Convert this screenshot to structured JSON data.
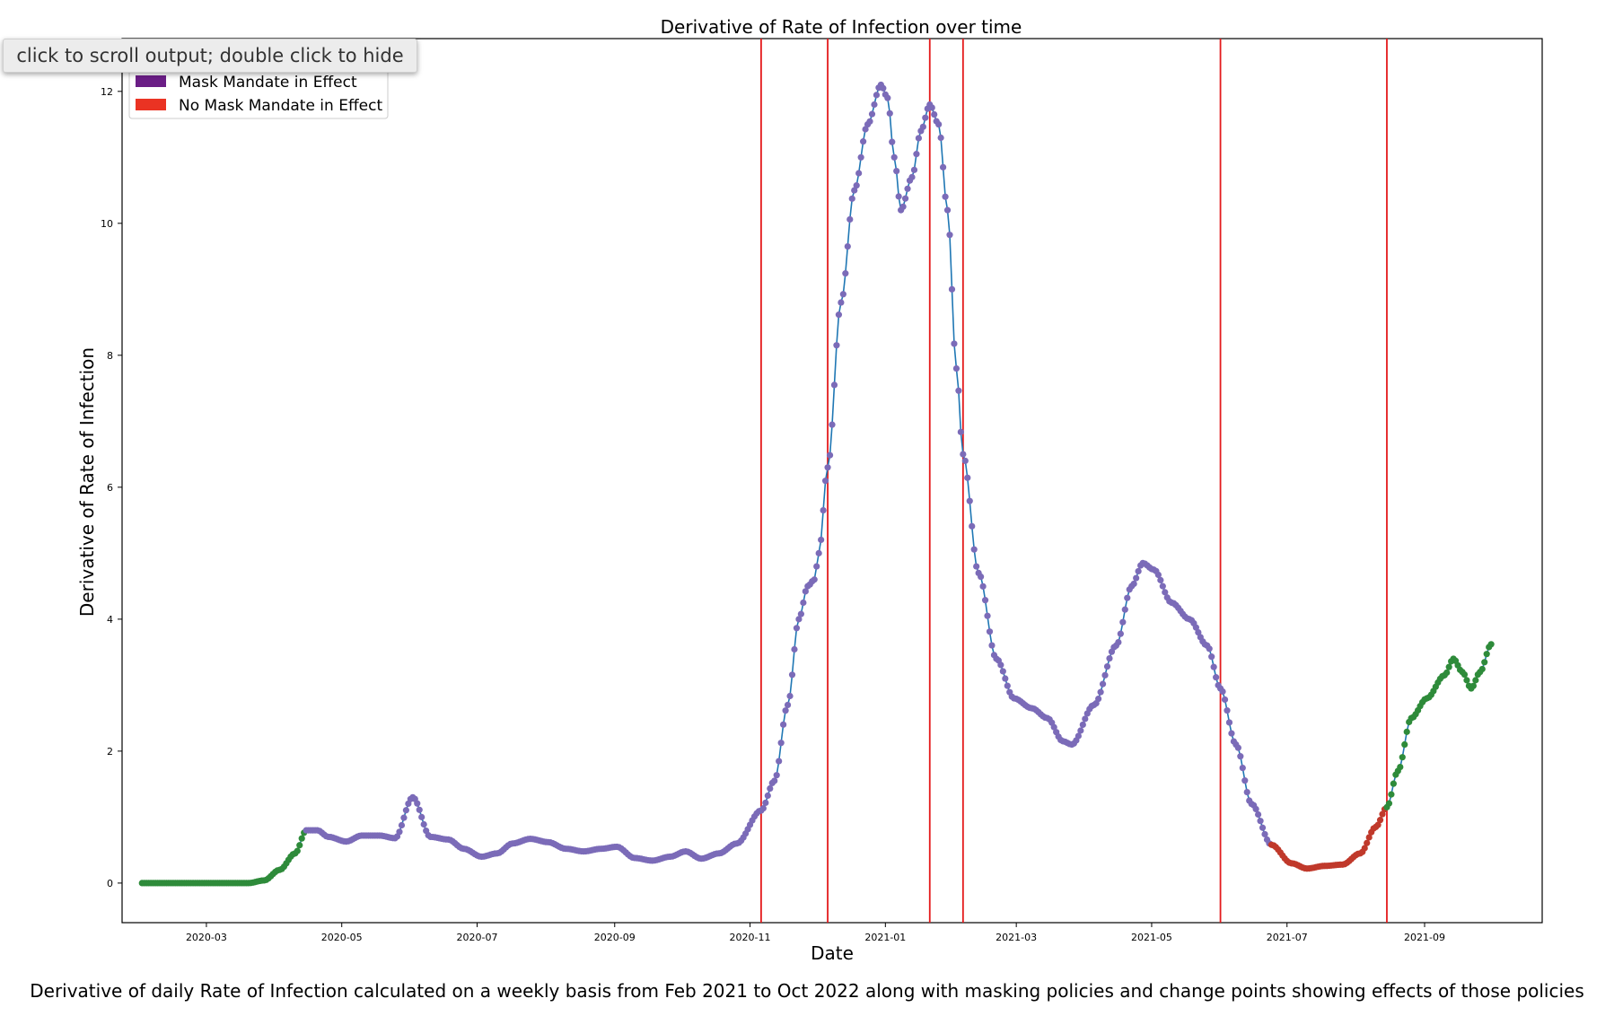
{
  "output_toggle": {
    "label": "click to scroll output; double click to hide"
  },
  "caption": "Derivative of daily Rate of Infection calculated on a weekly basis from Feb 2021 to Oct 2022 along with masking policies and change points showing effects of those policies",
  "colors": {
    "line": "#1f77b4",
    "mask": "#6b1e86",
    "no_mask": "#ea3323",
    "no_policy": "#2e8b3a",
    "change_point": "#e41a1c",
    "mask_marker": "#7b6bb8",
    "no_mask_marker": "#c0392b"
  },
  "chart_data": {
    "type": "line",
    "title": "Derivative of Rate of Infection over time",
    "xlabel": "Date",
    "ylabel": "Derivative of Rate of Infection",
    "x_range": [
      "2020-01-23",
      "2021-10-24"
    ],
    "ylim": [
      -0.6,
      12.8
    ],
    "x_ticks": [
      "2020-03",
      "2020-05",
      "2020-07",
      "2020-09",
      "2020-11",
      "2021-01",
      "2021-03",
      "2021-05",
      "2021-07",
      "2021-09"
    ],
    "y_ticks": [
      0,
      2,
      4,
      6,
      8,
      10,
      12
    ],
    "grid": false,
    "legend": {
      "placement": "top-left",
      "entries": [
        {
          "label": "Mask Mandate in Effect",
          "color": "#6b1e86"
        },
        {
          "label": "No Mask Mandate in Effect",
          "color": "#ea3323"
        }
      ]
    },
    "change_points": [
      "2020-11-06",
      "2020-12-06",
      "2021-01-21",
      "2021-02-05",
      "2021-06-01",
      "2021-08-15"
    ],
    "segments": [
      {
        "policy": "none",
        "from": "2020-02-01",
        "to": "2020-04-15"
      },
      {
        "policy": "mask",
        "from": "2020-04-15",
        "to": "2021-06-24"
      },
      {
        "policy": "no_mask",
        "from": "2021-06-24",
        "to": "2021-08-15"
      },
      {
        "policy": "none",
        "from": "2021-08-15",
        "to": "2021-10-01"
      }
    ],
    "series": [
      {
        "points": [
          [
            "2020-02-01",
            0.0
          ],
          [
            "2020-03-20",
            0.0
          ],
          [
            "2020-03-27",
            0.04
          ],
          [
            "2020-04-03",
            0.2
          ],
          [
            "2020-04-10",
            0.45
          ],
          [
            "2020-04-15",
            0.8
          ],
          [
            "2020-04-20",
            0.8
          ],
          [
            "2020-04-25",
            0.7
          ],
          [
            "2020-05-03",
            0.63
          ],
          [
            "2020-05-10",
            0.72
          ],
          [
            "2020-05-18",
            0.72
          ],
          [
            "2020-05-25",
            0.68
          ],
          [
            "2020-06-02",
            1.3
          ],
          [
            "2020-06-10",
            0.7
          ],
          [
            "2020-06-18",
            0.66
          ],
          [
            "2020-06-25",
            0.52
          ],
          [
            "2020-07-03",
            0.4
          ],
          [
            "2020-07-10",
            0.45
          ],
          [
            "2020-07-17",
            0.6
          ],
          [
            "2020-07-25",
            0.67
          ],
          [
            "2020-08-02",
            0.62
          ],
          [
            "2020-08-10",
            0.52
          ],
          [
            "2020-08-18",
            0.48
          ],
          [
            "2020-08-26",
            0.52
          ],
          [
            "2020-09-02",
            0.55
          ],
          [
            "2020-09-10",
            0.38
          ],
          [
            "2020-09-18",
            0.34
          ],
          [
            "2020-09-26",
            0.4
          ],
          [
            "2020-10-03",
            0.48
          ],
          [
            "2020-10-10",
            0.37
          ],
          [
            "2020-10-18",
            0.45
          ],
          [
            "2020-10-26",
            0.6
          ],
          [
            "2020-11-06",
            1.1
          ],
          [
            "2020-11-12",
            1.55
          ],
          [
            "2020-11-18",
            2.7
          ],
          [
            "2020-11-23",
            4.0
          ],
          [
            "2020-11-27",
            4.5
          ],
          [
            "2020-11-30",
            4.6
          ],
          [
            "2020-12-02",
            5.0
          ],
          [
            "2020-12-06",
            6.3
          ],
          [
            "2020-12-12",
            8.8
          ],
          [
            "2020-12-18",
            10.5
          ],
          [
            "2020-12-24",
            11.5
          ],
          [
            "2020-12-30",
            12.1
          ],
          [
            "2021-01-02",
            11.9
          ],
          [
            "2021-01-05",
            11.0
          ],
          [
            "2021-01-08",
            10.2
          ],
          [
            "2021-01-13",
            10.7
          ],
          [
            "2021-01-17",
            11.4
          ],
          [
            "2021-01-21",
            11.8
          ],
          [
            "2021-01-25",
            11.5
          ],
          [
            "2021-01-29",
            10.2
          ],
          [
            "2021-02-02",
            7.8
          ],
          [
            "2021-02-05",
            6.5
          ],
          [
            "2021-02-12",
            4.7
          ],
          [
            "2021-02-20",
            3.4
          ],
          [
            "2021-02-28",
            2.8
          ],
          [
            "2021-03-08",
            2.65
          ],
          [
            "2021-03-15",
            2.5
          ],
          [
            "2021-03-22",
            2.15
          ],
          [
            "2021-03-26",
            2.1
          ],
          [
            "2021-04-05",
            2.7
          ],
          [
            "2021-04-15",
            3.6
          ],
          [
            "2021-04-22",
            4.5
          ],
          [
            "2021-04-27",
            4.85
          ],
          [
            "2021-05-02",
            4.75
          ],
          [
            "2021-05-10",
            4.25
          ],
          [
            "2021-05-18",
            4.0
          ],
          [
            "2021-05-26",
            3.6
          ],
          [
            "2021-06-01",
            2.95
          ],
          [
            "2021-06-08",
            2.1
          ],
          [
            "2021-06-15",
            1.2
          ],
          [
            "2021-06-24",
            0.58
          ],
          [
            "2021-07-03",
            0.3
          ],
          [
            "2021-07-10",
            0.22
          ],
          [
            "2021-07-18",
            0.26
          ],
          [
            "2021-07-26",
            0.28
          ],
          [
            "2021-08-03",
            0.45
          ],
          [
            "2021-08-10",
            0.85
          ],
          [
            "2021-08-15",
            1.15
          ],
          [
            "2021-08-20",
            1.7
          ],
          [
            "2021-08-26",
            2.5
          ],
          [
            "2021-09-02",
            2.8
          ],
          [
            "2021-09-10",
            3.15
          ],
          [
            "2021-09-14",
            3.4
          ],
          [
            "2021-09-18",
            3.2
          ],
          [
            "2021-09-22",
            2.95
          ],
          [
            "2021-09-26",
            3.2
          ],
          [
            "2021-10-01",
            3.62
          ]
        ]
      }
    ]
  }
}
